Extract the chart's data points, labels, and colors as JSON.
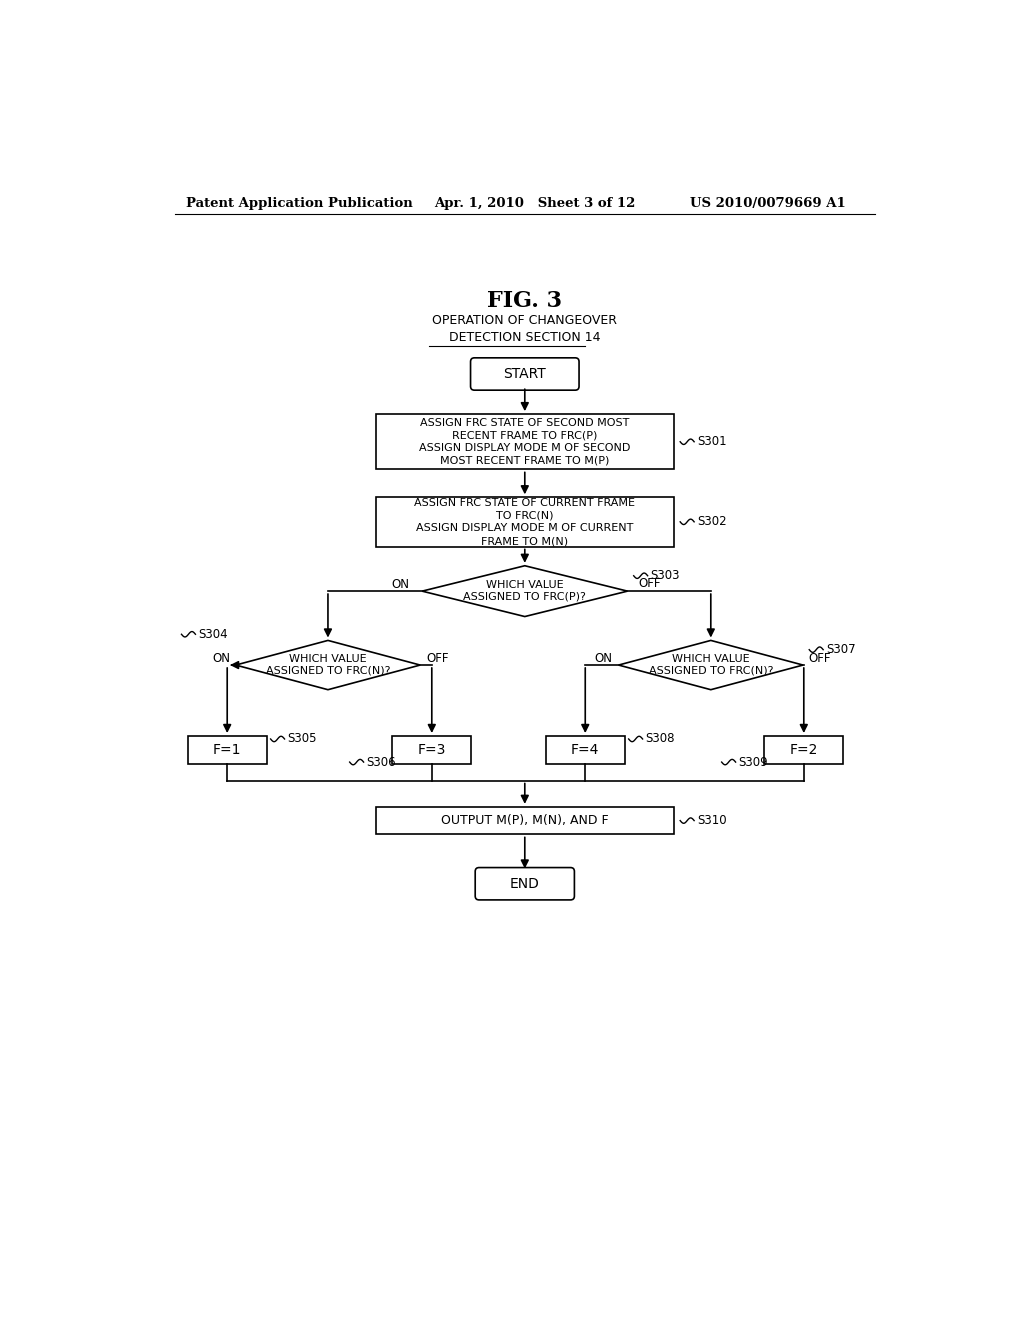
{
  "bg_color": "#ffffff",
  "text_color": "#000000",
  "header_left": "Patent Application Publication",
  "header_mid": "Apr. 1, 2010   Sheet 3 of 12",
  "header_right": "US 2010/0079669 A1",
  "fig_title": "FIG. 3",
  "fig_subtitle": "OPERATION OF CHANGEOVER\nDETECTION SECTION 14",
  "start_label": "START",
  "end_label": "END",
  "s301_label": "ASSIGN FRC STATE OF SECOND MOST\nRECENT FRAME TO FRC(P)\nASSIGN DISPLAY MODE M OF SECOND\nMOST RECENT FRAME TO M(P)",
  "s302_label": "ASSIGN FRC STATE OF CURRENT FRAME\nTO FRC(N)\nASSIGN DISPLAY MODE M OF CURRENT\nFRAME TO M(N)",
  "s303_label": "WHICH VALUE\nASSIGNED TO FRC(P)?",
  "s304_label": "WHICH VALUE\nASSIGNED TO FRC(N)?",
  "s307_label": "WHICH VALUE\nASSIGNED TO FRC(N)?",
  "s305_label": "F=1",
  "s306_label": "F=3",
  "s308_label": "F=4",
  "s309_label": "F=2",
  "s310_label": "OUTPUT M(P), M(N), AND F"
}
